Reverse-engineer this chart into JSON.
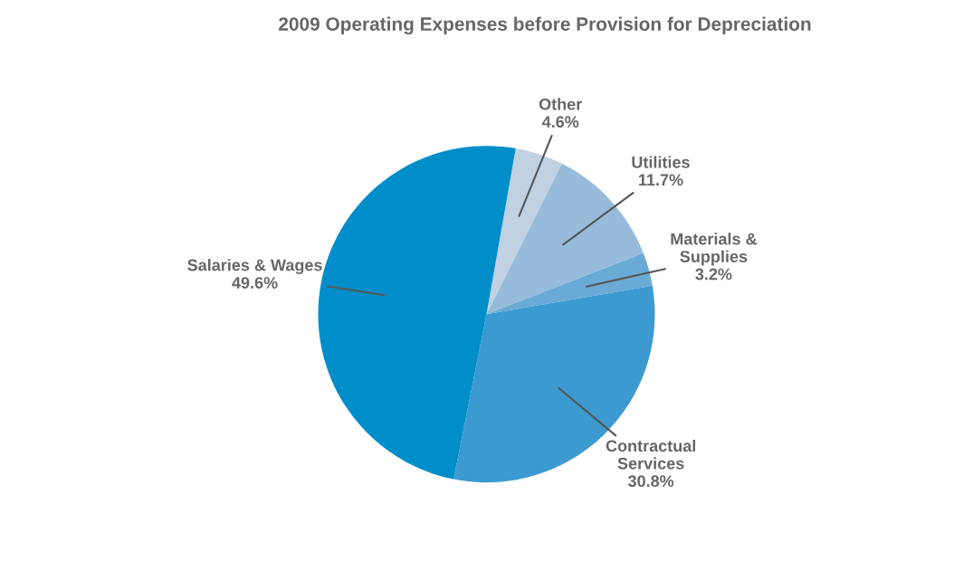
{
  "chart_data": {
    "type": "pie",
    "title": "2009 Operating Expenses before Provision for Depreciation",
    "categories": [
      "Other",
      "Utilities",
      "Materials &\nSupplies",
      "Contractual\nServices",
      "Salaries & Wages"
    ],
    "values": [
      4.6,
      11.7,
      3.2,
      30.8,
      49.6
    ],
    "value_labels": [
      "4.6%",
      "11.7%",
      "3.2%",
      "30.8%",
      "49.6%"
    ],
    "colors": [
      "#c0d2e2",
      "#97bcdb",
      "#6aaad6",
      "#3d9ad0",
      "#008ecb"
    ]
  }
}
